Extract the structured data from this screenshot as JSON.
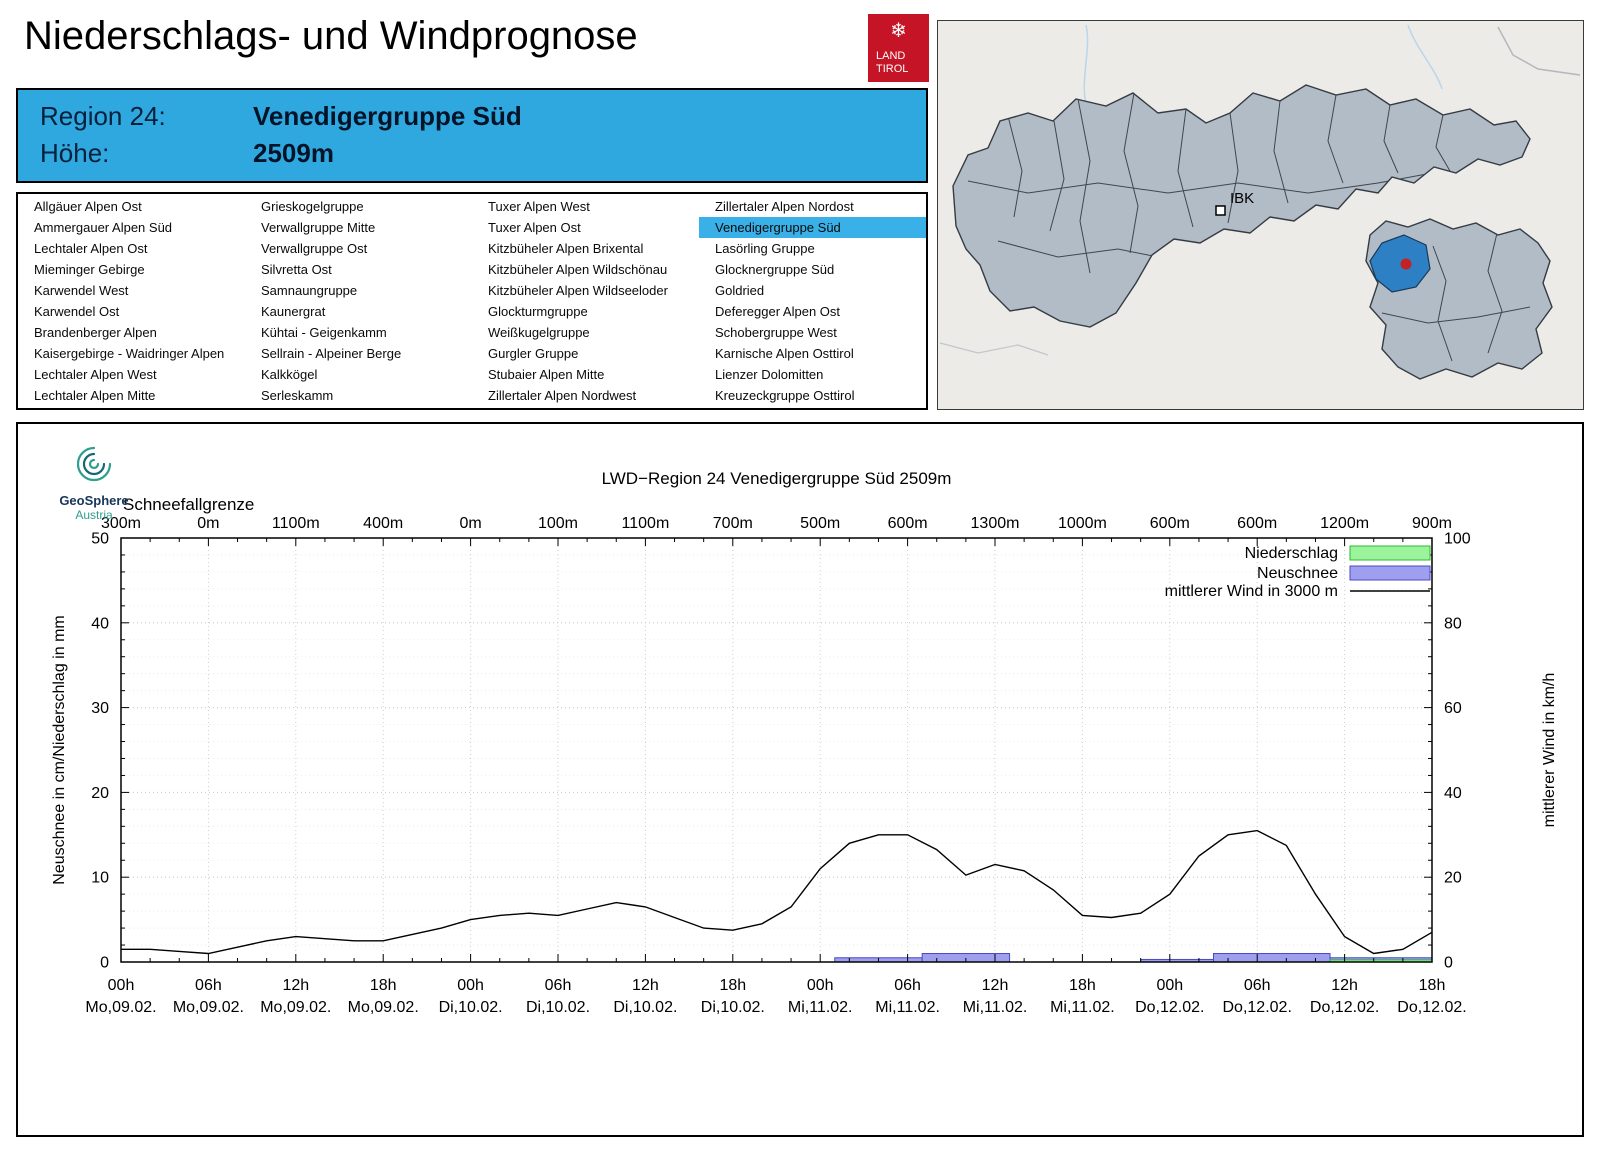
{
  "page": {
    "title": "Niederschlags- und Windprognose"
  },
  "logo": {
    "snowflake": "❄",
    "line1": "LAND",
    "line2": "TIROL"
  },
  "colors": {
    "accent_blue": "#2fa8e0",
    "selected_item_blue": "#3ab0e8",
    "logo_red": "#c41425",
    "map_region_fill": "#b2bcc6",
    "map_highlight_blue": "#2e80c4",
    "station_dot_red": "#c42222"
  },
  "region_header": {
    "region_label": "Region 24:",
    "region_value": "Venedigergruppe Süd",
    "hoehe_label": "Höhe:",
    "hoehe_value": "2509m"
  },
  "region_list": {
    "selected": "Venedigergruppe Süd",
    "columns": [
      [
        "Allgäuer Alpen Ost",
        "Ammergauer Alpen Süd",
        "Lechtaler Alpen Ost",
        "Mieminger Gebirge",
        "Karwendel West",
        "Karwendel Ost",
        "Brandenberger Alpen",
        "Kaisergebirge - Waidringer Alpen",
        "Lechtaler Alpen West",
        "Lechtaler Alpen Mitte"
      ],
      [
        "Grieskogelgruppe",
        "Verwallgruppe Mitte",
        "Verwallgruppe Ost",
        "Silvretta Ost",
        "Samnaungruppe",
        "Kaunergrat",
        "Kühtai - Geigenkamm",
        "Sellrain - Alpeiner Berge",
        "Kalkkögel",
        "Serleskamm"
      ],
      [
        "Tuxer Alpen West",
        "Tuxer Alpen Ost",
        "Kitzbüheler Alpen Brixental",
        "Kitzbüheler Alpen Wildschönau",
        "Kitzbüheler Alpen Wildseeloder",
        "Glockturmgruppe",
        "Weißkugelgruppe",
        "Gurgler Gruppe",
        "Stubaier Alpen Mitte",
        "Zillertaler Alpen Nordwest"
      ],
      [
        "Zillertaler Alpen Nordost",
        "Venedigergruppe Süd",
        "Lasörling Gruppe",
        "Glocknergruppe Süd",
        "Goldried",
        "Deferegger Alpen Ost",
        "Schobergruppe West",
        "Karnische Alpen Osttirol",
        "Lienzer Dolomitten",
        "Kreuzeckgruppe Osttirol"
      ]
    ]
  },
  "map": {
    "city": "IBK"
  },
  "geosphere": {
    "name": "GeoSphere",
    "country": "Austria"
  },
  "chart_data": {
    "type": "mixed",
    "title": "LWD−Region 24 Venedigergruppe Süd 2509m",
    "ylabel_left": "Neuschnee in cm/Niederschlag in mm",
    "ylabel_right": "mittlerer Wind in km/h",
    "ylim_left": [
      0,
      50
    ],
    "ylim_right": [
      0,
      100
    ],
    "y_ticks_left": [
      0,
      10,
      20,
      30,
      40,
      50
    ],
    "y_ticks_right": [
      0,
      20,
      40,
      60,
      80,
      100
    ],
    "x_range_hours": [
      0,
      90
    ],
    "x_ticks": [
      {
        "t": 0,
        "hour": "00h",
        "date": "Mo,09.02."
      },
      {
        "t": 6,
        "hour": "06h",
        "date": "Mo,09.02."
      },
      {
        "t": 12,
        "hour": "12h",
        "date": "Mo,09.02."
      },
      {
        "t": 18,
        "hour": "18h",
        "date": "Mo,09.02."
      },
      {
        "t": 24,
        "hour": "00h",
        "date": "Di,10.02."
      },
      {
        "t": 30,
        "hour": "06h",
        "date": "Di,10.02."
      },
      {
        "t": 36,
        "hour": "12h",
        "date": "Di,10.02."
      },
      {
        "t": 42,
        "hour": "18h",
        "date": "Di,10.02."
      },
      {
        "t": 48,
        "hour": "00h",
        "date": "Mi,11.02."
      },
      {
        "t": 54,
        "hour": "06h",
        "date": "Mi,11.02."
      },
      {
        "t": 60,
        "hour": "12h",
        "date": "Mi,11.02."
      },
      {
        "t": 66,
        "hour": "18h",
        "date": "Mi,11.02."
      },
      {
        "t": 72,
        "hour": "00h",
        "date": "Do,12.02."
      },
      {
        "t": 78,
        "hour": "06h",
        "date": "Do,12.02."
      },
      {
        "t": 84,
        "hour": "12h",
        "date": "Do,12.02."
      },
      {
        "t": 90,
        "hour": "18h",
        "date": "Do,12.02."
      }
    ],
    "schneefallgrenze": {
      "label": "Schneefallgrenze",
      "values": [
        "300m",
        "0m",
        "1100m",
        "400m",
        "0m",
        "100m",
        "1100m",
        "700m",
        "500m",
        "600m",
        "1300m",
        "1000m",
        "600m",
        "600m",
        "1200m",
        "900m"
      ]
    },
    "legend": [
      {
        "label": "Niederschlag",
        "type": "box",
        "fill": "#9bf39b",
        "stroke": "#2db82d"
      },
      {
        "label": "Neuschnee",
        "type": "box",
        "fill": "#9f9fef",
        "stroke": "#4848c8"
      },
      {
        "label": "mittlerer Wind in 3000 m",
        "type": "line",
        "stroke": "#000000"
      }
    ],
    "wind_series": {
      "name": "mittlerer Wind in 3000 m",
      "axis": "right",
      "unit": "km/h",
      "x": [
        0,
        2,
        4,
        6,
        8,
        10,
        12,
        14,
        16,
        18,
        20,
        22,
        24,
        26,
        28,
        30,
        32,
        34,
        36,
        38,
        40,
        42,
        44,
        46,
        48,
        50,
        52,
        54,
        56,
        58,
        60,
        62,
        64,
        66,
        68,
        70,
        72,
        74,
        76,
        78,
        80,
        82,
        84,
        86,
        88,
        90
      ],
      "y": [
        3,
        3,
        2.5,
        2,
        3.5,
        5,
        6,
        5.5,
        5,
        5,
        6.5,
        8,
        10,
        11,
        11.5,
        11,
        12.5,
        14,
        13,
        10.5,
        8,
        7.5,
        9,
        13,
        22,
        28,
        30,
        30,
        26.5,
        20.5,
        23,
        21.5,
        17,
        11,
        10.5,
        11.5,
        16,
        25,
        30,
        31,
        27.5,
        16,
        6,
        2,
        3,
        7
      ]
    },
    "neuschnee_bars": {
      "unit": "cm",
      "bars": [
        {
          "t0": 49,
          "t1": 55,
          "value": 0.5
        },
        {
          "t0": 55,
          "t1": 61,
          "value": 1.0
        },
        {
          "t0": 70,
          "t1": 75,
          "value": 0.3
        },
        {
          "t0": 75,
          "t1": 83,
          "value": 1.0
        },
        {
          "t0": 83,
          "t1": 90,
          "value": 0.5
        }
      ]
    },
    "niederschlag_bars": {
      "unit": "mm",
      "bars": [
        {
          "t0": 83,
          "t1": 90,
          "value": 0.25
        }
      ]
    }
  }
}
